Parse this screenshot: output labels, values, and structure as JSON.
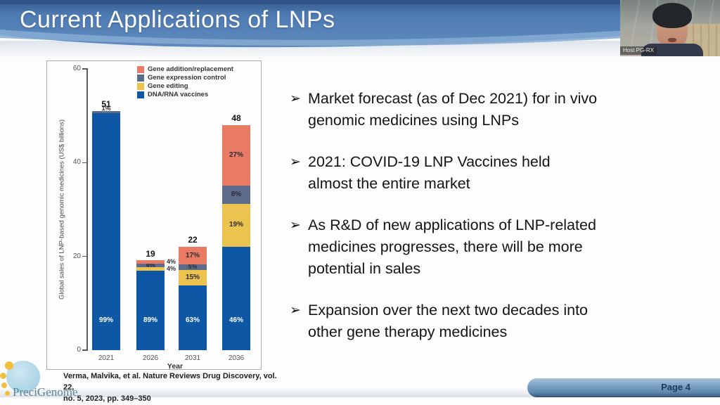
{
  "header": {
    "title": "Current Applications of LNPs"
  },
  "webcam": {
    "label": "Host PG-RX"
  },
  "bullets": [
    {
      "text": "Market forecast (as of Dec 2021) for in vivo\ngenomic medicines using LNPs"
    },
    {
      "text": "2021: COVID-19 LNP Vaccines held\nalmost the entire market"
    },
    {
      "text": "As R&D of new applications of LNP-related\nmedicines progresses, there will be more\npotential in sales"
    },
    {
      "text": "Expansion over the next two decades into\nother gene therapy medicines"
    }
  ],
  "bullet_marker": "➢",
  "chart_data": {
    "type": "bar",
    "stacked": true,
    "categories": [
      "2021",
      "2026",
      "2031",
      "2036"
    ],
    "totals": [
      51,
      19,
      22,
      48
    ],
    "series": [
      {
        "name": "Gene addition/replacement",
        "color": "#e97a63",
        "pct": [
          0,
          4,
          17,
          27
        ]
      },
      {
        "name": "Gene expression control",
        "color": "#5e6c8c",
        "pct": [
          1,
          4,
          5,
          8
        ]
      },
      {
        "name": "Gene editing",
        "color": "#edc34f",
        "pct": [
          0,
          4,
          15,
          19
        ]
      },
      {
        "name": "DNA/RNA vaccines",
        "color": "#0d57a5",
        "pct": [
          99,
          89,
          63,
          46
        ]
      }
    ],
    "xlabel": "Year",
    "ylabel": "Global sales of LNP-based genomic medicines (US$ billions)",
    "ylim": [
      0,
      60
    ],
    "yticks": [
      0,
      20,
      40,
      60
    ],
    "legend_position": "top-right",
    "grid": false,
    "label_positions": {
      "2021": {
        "Gene expression control": "top"
      },
      "2026": {
        "Gene addition/replacement": "right",
        "Gene expression control": "center",
        "Gene editing": "right"
      },
      "2031": {
        "Gene expression control": "center"
      }
    }
  },
  "citation": "Verma, Malvika, et al. Nature Reviews Drug Discovery, vol. 22,\nno. 5, 2023, pp. 349–350",
  "footer": {
    "page_label": "Page 4",
    "logo_text": "PreciGenome"
  }
}
